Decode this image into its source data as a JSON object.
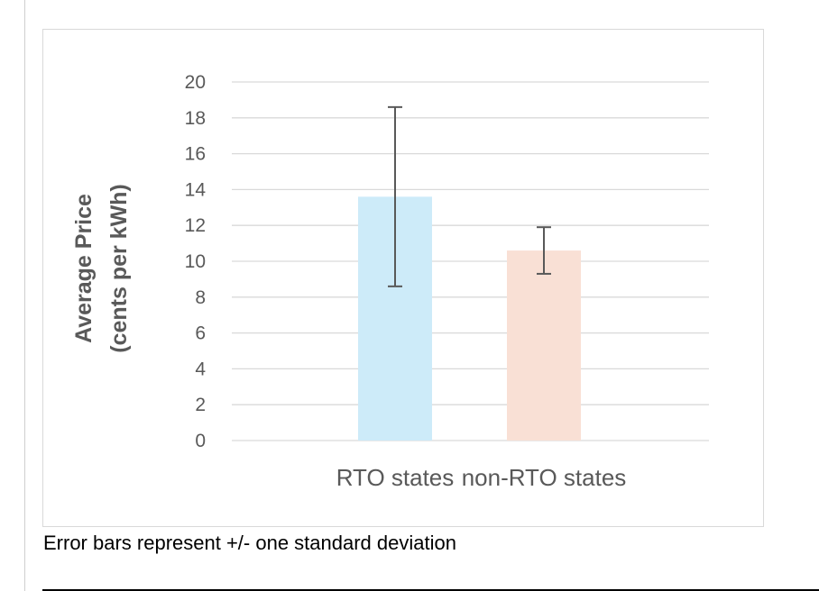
{
  "chart_data": {
    "type": "bar",
    "categories": [
      "RTO states",
      "non-RTO states"
    ],
    "series": [
      {
        "values": [
          13.6,
          10.6
        ],
        "error": [
          5.0,
          1.3
        ]
      }
    ],
    "colors": [
      "#cdebf9",
      "#f9e0d5"
    ],
    "error_bar_color": "#595959",
    "title": "",
    "xlabel": "",
    "ylabel": [
      "Average Price",
      "(cents per kWh)"
    ],
    "ylim": [
      0,
      20
    ],
    "yticks": [
      0,
      2,
      4,
      6,
      8,
      10,
      12,
      14,
      16,
      18,
      20
    ],
    "grid": true,
    "legend": "none"
  },
  "caption": "Error bars represent +/- one standard deviation"
}
